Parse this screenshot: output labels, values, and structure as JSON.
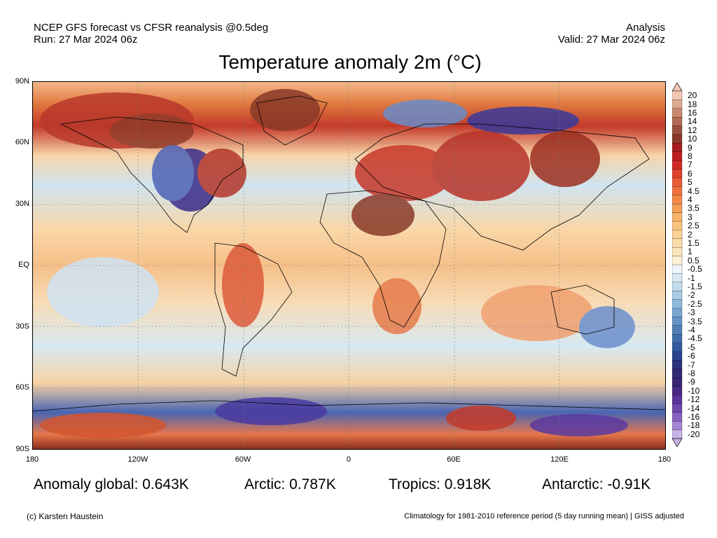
{
  "header": {
    "line1_left": "NCEP GFS forecast vs CFSR reanalysis @0.5deg",
    "line2_left": "Run: 27 Mar 2024 06z",
    "line1_right": "Analysis",
    "line2_right": "Valid: 27 Mar 2024 06z"
  },
  "title": "Temperature anomaly 2m (°C)",
  "lat_labels": [
    "90N",
    "60N",
    "30N",
    "EQ",
    "30S",
    "60S",
    "90S"
  ],
  "lon_labels": [
    "180",
    "120W",
    "60W",
    "0",
    "60E",
    "120E",
    "180"
  ],
  "colorbar": {
    "labels": [
      "20",
      "18",
      "16",
      "14",
      "12",
      "10",
      "9",
      "8",
      "7",
      "6",
      "5",
      "4.5",
      "4",
      "3.5",
      "3",
      "2.5",
      "2",
      "1.5",
      "1",
      "0.5",
      "-0.5",
      "-1",
      "-1.5",
      "-2",
      "-2.5",
      "-3",
      "-3.5",
      "-4",
      "-4.5",
      "-5",
      "-6",
      "-7",
      "-8",
      "-9",
      "-10",
      "-12",
      "-14",
      "-16",
      "-18",
      "-20"
    ],
    "colors": [
      "#f3c8b3",
      "#dda98f",
      "#c98a70",
      "#b26b53",
      "#9c503c",
      "#8a3a29",
      "#a61c1c",
      "#be1e1e",
      "#d22a22",
      "#e0402c",
      "#e95b35",
      "#ef713d",
      "#f38747",
      "#f69e57",
      "#f8b36a",
      "#f9c47e",
      "#fad293",
      "#fbdda8",
      "#fce6bc",
      "#fdf0d5",
      "#eef5fb",
      "#d9eaf5",
      "#c2dcee",
      "#a9cbe5",
      "#90b9dc",
      "#78a6d1",
      "#6293c6",
      "#4f80ba",
      "#3f6dae",
      "#34599f",
      "#2c458f",
      "#2a3580",
      "#302a76",
      "#3a2474",
      "#492a86",
      "#5b3599",
      "#6f48ad",
      "#8761c2",
      "#a584d5",
      "#c7b2e8"
    ]
  },
  "stats": {
    "global": "Anomaly global: 0.643K",
    "arctic": "Arctic: 0.787K",
    "tropics": "Tropics: 0.918K",
    "antarctic": "Antarctic: -0.91K"
  },
  "footer": {
    "left": "(c) Karsten Haustein",
    "right": "Climatology for 1981-2010 reference period (5 day running mean) | GISS adjusted"
  }
}
